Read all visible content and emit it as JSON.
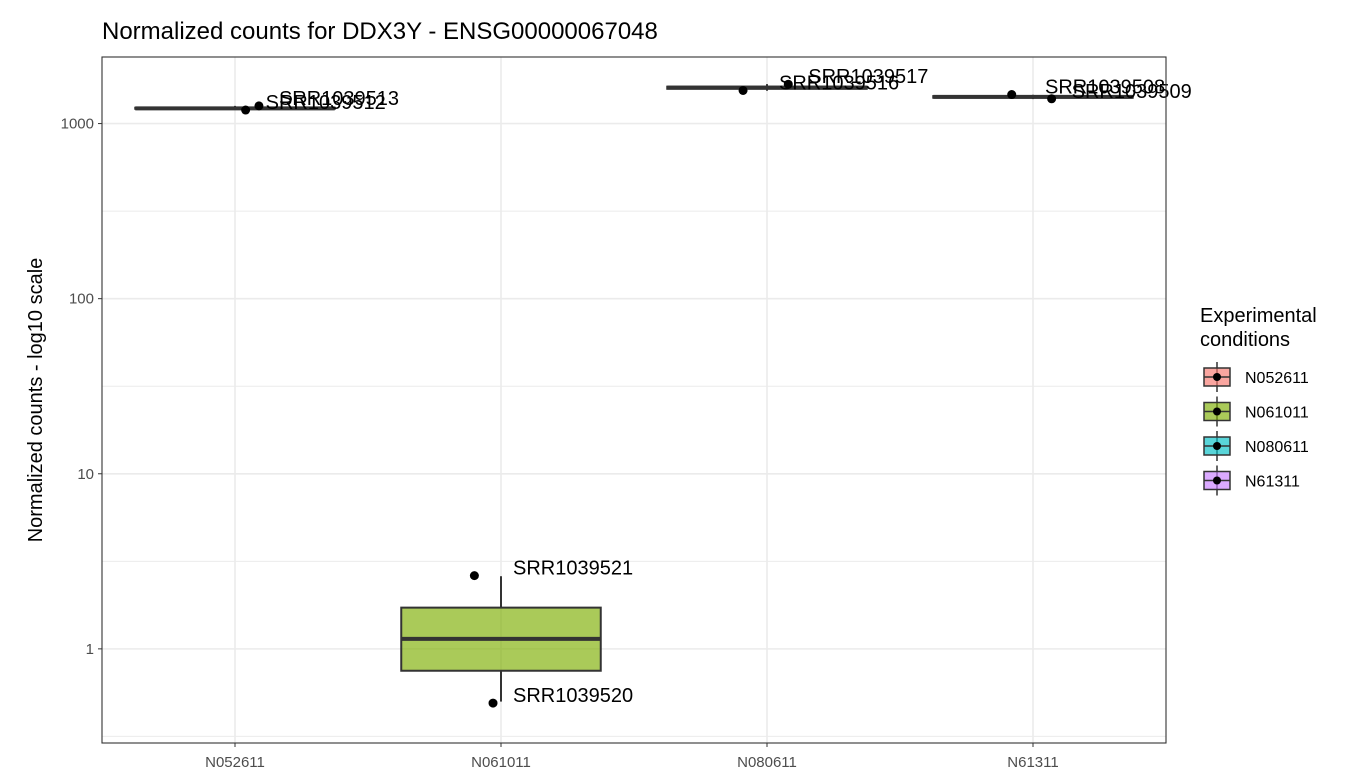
{
  "chart_data": {
    "type": "box",
    "title": "Normalized counts for DDX3Y - ENSG00000067048",
    "ylabel": "Normalized counts - log10 scale",
    "xlabel": "",
    "y_scale": "log10",
    "ylim": [
      0.29,
      2400
    ],
    "y_ticks": [
      1,
      10,
      100,
      1000
    ],
    "y_tick_labels": [
      "1",
      "10",
      "100",
      "1000"
    ],
    "categories": [
      "N052611",
      "N061011",
      "N080611",
      "N61311"
    ],
    "grid": true,
    "boxes": [
      {
        "category": "N052611",
        "q1": 1215,
        "median": 1222,
        "q3": 1232,
        "whisker_low": 1195,
        "whisker_high": 1262,
        "fill": "#F8766D"
      },
      {
        "category": "N061011",
        "q1": 0.75,
        "median": 1.14,
        "q3": 1.72,
        "whisker_low": 0.5,
        "whisker_high": 2.6,
        "fill": "#7CAE00"
      },
      {
        "category": "N080611",
        "q1": 1580,
        "median": 1605,
        "q3": 1625,
        "whisker_low": 1540,
        "whisker_high": 1680,
        "fill": "#00BFC4"
      },
      {
        "category": "N61311",
        "q1": 1405,
        "median": 1420,
        "q3": 1435,
        "whisker_low": 1380,
        "whisker_high": 1460,
        "fill": "#C77CFF"
      }
    ],
    "points": [
      {
        "category": "N052611",
        "sample": "SRR1039512",
        "value": 1195,
        "jitter": 0.04
      },
      {
        "category": "N052611",
        "sample": "SRR1039513",
        "value": 1262,
        "jitter": 0.09
      },
      {
        "category": "N061011",
        "sample": "SRR1039520",
        "value": 0.49,
        "jitter": -0.03
      },
      {
        "category": "N061011",
        "sample": "SRR1039521",
        "value": 2.62,
        "jitter": -0.1
      },
      {
        "category": "N080611",
        "sample": "SRR1039516",
        "value": 1545,
        "jitter": -0.09
      },
      {
        "category": "N080611",
        "sample": "SRR1039517",
        "value": 1678,
        "jitter": 0.08
      },
      {
        "category": "N61311",
        "sample": "SRR1039508",
        "value": 1465,
        "jitter": -0.08
      },
      {
        "category": "N61311",
        "sample": "SRR1039509",
        "value": 1385,
        "jitter": 0.07
      }
    ],
    "legend": {
      "title": "Experimental\nconditions",
      "position": "right",
      "items": [
        {
          "label": "N052611",
          "color": "#F8766D"
        },
        {
          "label": "N061011",
          "color": "#7CAE00"
        },
        {
          "label": "N080611",
          "color": "#00BFC4"
        },
        {
          "label": "N61311",
          "color": "#C77CFF"
        }
      ]
    },
    "box_alpha": 0.65
  }
}
